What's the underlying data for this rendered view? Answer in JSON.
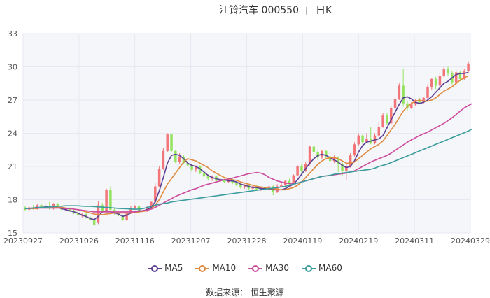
{
  "title": {
    "name": "江铃汽车 000550",
    "period": "日K"
  },
  "source": "数据来源： 恒生聚源",
  "colors": {
    "up": "#f2757a",
    "down": "#93e35f",
    "grid": "#e6e9f2",
    "plot_bg": "#f5f6fa",
    "axis_text": "#555555"
  },
  "chart_data": {
    "type": "candlestick",
    "ylim": [
      15,
      33
    ],
    "yticks": [
      15,
      18,
      21,
      24,
      27,
      30,
      33
    ],
    "xticks": [
      "20230927",
      "20231026",
      "20231116",
      "20231207",
      "20231228",
      "20240119",
      "20240219",
      "20240311",
      "20240329"
    ],
    "legend": [
      "MA5",
      "MA10",
      "MA30",
      "MA60"
    ],
    "legend_position": "bottom",
    "grid": true,
    "series": [
      {
        "name": "MA5",
        "color": "#5b3f91",
        "values": [
          17.2,
          17.2,
          17.25,
          17.3,
          17.3,
          17.35,
          17.4,
          17.35,
          17.3,
          17.2,
          17.1,
          17,
          16.9,
          16.8,
          16.6,
          16.5,
          16.3,
          16.2,
          16.5,
          16.9,
          17.0,
          16.9,
          16.8,
          16.7,
          16.5,
          16.6,
          16.8,
          16.9,
          17.0,
          17.0,
          17.1,
          17.3,
          17.8,
          18.8,
          20.0,
          21.3,
          22.0,
          22.1,
          22.0,
          21.7,
          21.3,
          21.1,
          21.0,
          20.8,
          20.5,
          20.2,
          20.0,
          19.9,
          19.8,
          19.8,
          19.7,
          19.7,
          19.6,
          19.4,
          19.3,
          19.2,
          19.1,
          19.1,
          19.0,
          19.0,
          19.0,
          18.9,
          18.9,
          18.9,
          19.0,
          19.2,
          19.4,
          19.8,
          20.3,
          20.8,
          21.3,
          21.7,
          22.0,
          22.1,
          22.0,
          21.8,
          21.6,
          21.4,
          21.1,
          20.9,
          21.0,
          21.5,
          22.3,
          22.9,
          23.2,
          23.3,
          23.4,
          23.5,
          23.8,
          24.5,
          25.2,
          25.9,
          26.6,
          27.2,
          27.3,
          27.1,
          26.8,
          26.7,
          26.8,
          27.0,
          27.3,
          27.7,
          28.1,
          28.5,
          28.7,
          29.0,
          29.3,
          29.4,
          29.4,
          29.5
        ]
      },
      {
        "name": "MA10",
        "color": "#e08a3d",
        "values": [
          17.2,
          17.2,
          17.2,
          17.2,
          17.3,
          17.3,
          17.35,
          17.35,
          17.3,
          17.3,
          17.25,
          17.2,
          17.15,
          17.1,
          17.0,
          16.9,
          16.8,
          16.7,
          16.65,
          16.65,
          16.7,
          16.75,
          16.8,
          16.8,
          16.8,
          16.8,
          16.8,
          16.85,
          16.9,
          16.95,
          17.0,
          17.2,
          17.5,
          18.0,
          18.7,
          19.4,
          19.9,
          20.4,
          20.9,
          21.4,
          21.7,
          21.6,
          21.5,
          21.3,
          21.1,
          20.9,
          20.6,
          20.4,
          20.2,
          20.0,
          19.9,
          19.8,
          19.75,
          19.6,
          19.5,
          19.4,
          19.3,
          19.2,
          19.15,
          19.1,
          19.0,
          19.0,
          18.95,
          18.9,
          18.9,
          19.0,
          19.1,
          19.3,
          19.6,
          20.0,
          20.4,
          20.8,
          21.2,
          21.5,
          21.7,
          21.8,
          21.8,
          21.7,
          21.5,
          21.3,
          21.3,
          21.4,
          21.7,
          22.0,
          22.3,
          22.6,
          22.8,
          23.0,
          23.3,
          23.8,
          24.3,
          24.8,
          25.4,
          26.0,
          26.4,
          26.7,
          26.9,
          27.0,
          26.9,
          26.9,
          27.0,
          27.2,
          27.5,
          27.8,
          28.0,
          28.2,
          28.5,
          28.8,
          29.0,
          29.2
        ]
      },
      {
        "name": "MA30",
        "color": "#cc4b9c",
        "values": [
          17.2,
          17.2,
          17.25,
          17.25,
          17.25,
          17.25,
          17.25,
          17.25,
          17.25,
          17.25,
          17.2,
          17.2,
          17.15,
          17.1,
          17.05,
          17.0,
          16.95,
          16.9,
          16.9,
          16.9,
          16.9,
          16.9,
          16.9,
          16.9,
          16.9,
          16.9,
          16.9,
          16.9,
          16.95,
          17.0,
          17.05,
          17.15,
          17.3,
          17.5,
          17.7,
          17.9,
          18.1,
          18.3,
          18.45,
          18.6,
          18.75,
          18.9,
          19.0,
          19.15,
          19.3,
          19.4,
          19.5,
          19.6,
          19.7,
          19.8,
          19.85,
          19.95,
          20.05,
          20.15,
          20.25,
          20.35,
          20.4,
          20.45,
          20.4,
          20.25,
          20.0,
          19.85,
          19.7,
          19.6,
          19.5,
          19.45,
          19.45,
          19.5,
          19.6,
          19.7,
          19.8,
          19.9,
          20.0,
          20.1,
          20.15,
          20.2,
          20.25,
          20.3,
          20.35,
          20.4,
          20.5,
          20.6,
          20.8,
          21.0,
          21.2,
          21.4,
          21.55,
          21.7,
          21.85,
          22.0,
          22.2,
          22.45,
          22.7,
          22.95,
          23.2,
          23.4,
          23.6,
          23.8,
          23.95,
          24.1,
          24.3,
          24.5,
          24.7,
          24.9,
          25.15,
          25.4,
          25.7,
          26.0,
          26.3,
          26.5,
          26.7
        ]
      },
      {
        "name": "MA60",
        "color": "#3a9c9c",
        "values": [
          17.2,
          17.22,
          17.25,
          17.28,
          17.3,
          17.32,
          17.35,
          17.37,
          17.4,
          17.42,
          17.45,
          17.45,
          17.45,
          17.45,
          17.42,
          17.4,
          17.4,
          17.38,
          17.35,
          17.33,
          17.3,
          17.28,
          17.25,
          17.22,
          17.2,
          17.18,
          17.16,
          17.14,
          17.15,
          17.2,
          17.3,
          17.4,
          17.5,
          17.6,
          17.65,
          17.7,
          17.8,
          17.85,
          17.9,
          17.95,
          18.0,
          18.05,
          18.1,
          18.15,
          18.2,
          18.25,
          18.3,
          18.35,
          18.4,
          18.45,
          18.5,
          18.55,
          18.6,
          18.65,
          18.7,
          18.75,
          18.8,
          18.85,
          18.9,
          18.95,
          19.0,
          19.05,
          19.1,
          19.15,
          19.2,
          19.3,
          19.4,
          19.5,
          19.6,
          19.7,
          19.8,
          19.9,
          20.0,
          20.1,
          20.15,
          20.2,
          20.3,
          20.35,
          20.4,
          20.45,
          20.5,
          20.55,
          20.6,
          20.65,
          20.7,
          20.75,
          20.85,
          21.0,
          21.1,
          21.2,
          21.35,
          21.5,
          21.65,
          21.8,
          21.95,
          22.1,
          22.25,
          22.4,
          22.55,
          22.7,
          22.85,
          23.0,
          23.15,
          23.3,
          23.45,
          23.6,
          23.75,
          23.9,
          24.05,
          24.2,
          24.4
        ]
      }
    ],
    "candles": [
      [
        17.3,
        17.1,
        17.45,
        17.0
      ],
      [
        17.1,
        17.3,
        17.4,
        17.0
      ],
      [
        17.3,
        17.2,
        17.5,
        17.1
      ],
      [
        17.2,
        17.5,
        17.6,
        17.1
      ],
      [
        17.5,
        17.3,
        17.6,
        17.2
      ],
      [
        17.3,
        17.4,
        17.5,
        17.2
      ],
      [
        17.4,
        17.2,
        17.8,
        17.1
      ],
      [
        17.2,
        17.6,
        17.7,
        17.1
      ],
      [
        17.6,
        17.3,
        17.7,
        17.2
      ],
      [
        17.3,
        17.1,
        17.4,
        17.0
      ],
      [
        17.1,
        17.2,
        17.3,
        17.0
      ],
      [
        17.2,
        17.0,
        17.3,
        16.9
      ],
      [
        17.0,
        16.8,
        17.1,
        16.7
      ],
      [
        16.8,
        16.6,
        16.9,
        16.5
      ],
      [
        16.6,
        16.7,
        16.8,
        16.4
      ],
      [
        16.7,
        16.4,
        16.8,
        16.3
      ],
      [
        16.4,
        16.2,
        16.5,
        16.1
      ],
      [
        16.2,
        15.7,
        16.3,
        15.6
      ],
      [
        15.9,
        17.5,
        17.9,
        15.8
      ],
      [
        17.5,
        17.0,
        17.7,
        16.9
      ],
      [
        17.0,
        18.9,
        19.0,
        16.9
      ],
      [
        18.9,
        17.1,
        19.2,
        17.0
      ],
      [
        17.1,
        16.8,
        17.2,
        16.6
      ],
      [
        16.8,
        16.6,
        16.9,
        16.5
      ],
      [
        16.5,
        16.2,
        16.6,
        16.1
      ],
      [
        16.2,
        16.8,
        16.9,
        16.1
      ],
      [
        16.8,
        17.2,
        17.4,
        16.7
      ],
      [
        17.2,
        17.4,
        17.5,
        17.1
      ],
      [
        17.4,
        16.9,
        17.5,
        16.8
      ],
      [
        16.9,
        17.0,
        17.1,
        16.8
      ],
      [
        17.0,
        17.3,
        17.4,
        16.9
      ],
      [
        17.3,
        17.8,
        17.9,
        17.2
      ],
      [
        17.8,
        19.2,
        19.5,
        17.7
      ],
      [
        19.2,
        20.8,
        21.0,
        19.1
      ],
      [
        20.8,
        22.4,
        22.7,
        20.7
      ],
      [
        22.4,
        23.9,
        24.0,
        22.3
      ],
      [
        23.9,
        22.4,
        23.9,
        22.3
      ],
      [
        22.4,
        21.4,
        22.5,
        21.3
      ],
      [
        21.4,
        21.9,
        22.2,
        21.2
      ],
      [
        21.9,
        21.3,
        22.0,
        21.2
      ],
      [
        21.3,
        21.1,
        21.5,
        21.0
      ],
      [
        21.1,
        20.7,
        21.2,
        20.5
      ],
      [
        20.7,
        21.0,
        21.1,
        20.5
      ],
      [
        21.0,
        20.4,
        21.1,
        20.3
      ],
      [
        20.4,
        20.1,
        20.6,
        20.0
      ],
      [
        20.1,
        19.9,
        20.3,
        19.8
      ],
      [
        19.9,
        20.1,
        20.2,
        19.7
      ],
      [
        20.1,
        19.7,
        20.2,
        19.6
      ],
      [
        19.7,
        19.8,
        20.0,
        19.6
      ],
      [
        19.8,
        19.6,
        19.9,
        19.5
      ],
      [
        19.6,
        19.8,
        19.9,
        19.5
      ],
      [
        19.8,
        19.5,
        19.9,
        19.4
      ],
      [
        19.5,
        19.3,
        19.6,
        19.2
      ],
      [
        19.3,
        19.1,
        19.4,
        19.0
      ],
      [
        19.1,
        19.3,
        19.4,
        19.0
      ],
      [
        19.3,
        19.0,
        19.4,
        18.9
      ],
      [
        19.0,
        19.2,
        19.3,
        18.9
      ],
      [
        19.2,
        18.9,
        19.3,
        18.8
      ],
      [
        18.9,
        19.1,
        19.2,
        18.8
      ],
      [
        19.1,
        18.9,
        19.2,
        18.7
      ],
      [
        18.9,
        19.2,
        19.3,
        18.8
      ],
      [
        19.2,
        18.7,
        19.3,
        18.4
      ],
      [
        18.7,
        19.2,
        19.4,
        18.6
      ],
      [
        19.2,
        19.3,
        19.5,
        19.1
      ],
      [
        19.3,
        19.7,
        19.8,
        19.2
      ],
      [
        19.7,
        19.4,
        19.9,
        19.3
      ],
      [
        19.4,
        20.2,
        20.3,
        19.3
      ],
      [
        20.2,
        21.0,
        21.1,
        20.1
      ],
      [
        21.0,
        20.6,
        21.2,
        20.4
      ],
      [
        20.6,
        21.2,
        21.4,
        20.5
      ],
      [
        21.2,
        22.8,
        22.9,
        21.1
      ],
      [
        22.8,
        22.3,
        22.9,
        21.8
      ],
      [
        22.3,
        21.8,
        22.5,
        21.6
      ],
      [
        21.8,
        22.4,
        22.5,
        21.7
      ],
      [
        22.4,
        21.9,
        22.5,
        21.7
      ],
      [
        21.9,
        21.5,
        22.1,
        21.4
      ],
      [
        21.5,
        21.8,
        22.0,
        21.3
      ],
      [
        21.8,
        21.2,
        21.9,
        20.5
      ],
      [
        21.2,
        20.6,
        21.5,
        20.1
      ],
      [
        20.6,
        21.0,
        21.2,
        19.8
      ],
      [
        21.0,
        22.0,
        22.2,
        20.9
      ],
      [
        22.0,
        23.0,
        23.2,
        21.9
      ],
      [
        23.0,
        23.8,
        24.0,
        22.9
      ],
      [
        23.8,
        23.2,
        23.9,
        23.0
      ],
      [
        23.2,
        23.5,
        24.0,
        23.1
      ],
      [
        23.5,
        23.1,
        24.6,
        23.0
      ],
      [
        23.1,
        23.8,
        24.0,
        23.0
      ],
      [
        23.8,
        24.6,
        25.0,
        23.7
      ],
      [
        24.6,
        25.6,
        25.8,
        24.5
      ],
      [
        25.6,
        24.9,
        25.8,
        24.8
      ],
      [
        24.9,
        26.3,
        26.5,
        24.8
      ],
      [
        26.3,
        27.1,
        27.4,
        26.2
      ],
      [
        27.1,
        28.3,
        28.5,
        27.0
      ],
      [
        28.3,
        26.7,
        29.8,
        26.5
      ],
      [
        26.7,
        26.3,
        26.9,
        26.0
      ],
      [
        26.3,
        26.6,
        26.8,
        26.2
      ],
      [
        26.6,
        27.0,
        27.1,
        26.5
      ],
      [
        27.0,
        26.8,
        27.2,
        26.6
      ],
      [
        26.8,
        27.2,
        27.3,
        26.7
      ],
      [
        27.2,
        28.2,
        28.4,
        27.0
      ],
      [
        28.2,
        28.9,
        29.0,
        27.9
      ],
      [
        28.9,
        28.3,
        29.1,
        28.0
      ],
      [
        28.3,
        29.2,
        29.5,
        28.1
      ],
      [
        29.2,
        29.8,
        30.0,
        29.0
      ],
      [
        29.8,
        29.4,
        30.0,
        29.2
      ],
      [
        29.4,
        28.6,
        29.6,
        28.4
      ],
      [
        28.6,
        29.5,
        29.7,
        28.3
      ],
      [
        29.5,
        28.9,
        29.6,
        28.7
      ],
      [
        28.9,
        29.6,
        29.8,
        28.8
      ],
      [
        29.6,
        30.3,
        30.5,
        29.4
      ]
    ]
  }
}
